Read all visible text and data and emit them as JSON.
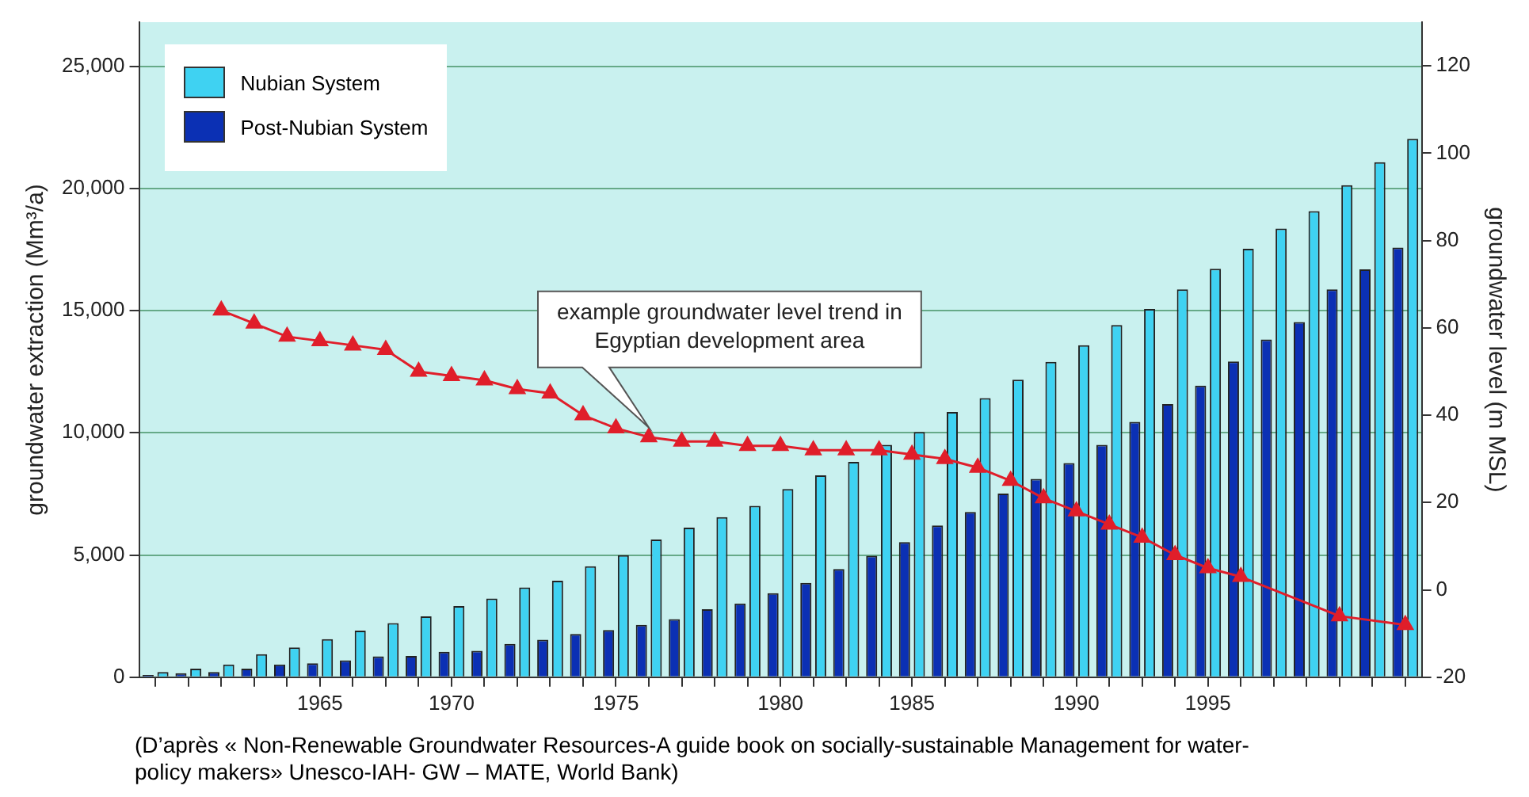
{
  "chart_data": {
    "type": "bar",
    "categories": [
      null,
      null,
      null,
      null,
      null,
      "1965",
      null,
      null,
      null,
      "1970",
      null,
      null,
      null,
      null,
      "1975",
      null,
      null,
      null,
      null,
      "1980",
      null,
      null,
      null,
      "1985",
      null,
      null,
      null,
      null,
      "1990",
      null,
      null,
      null,
      "1995",
      null,
      null,
      null,
      null,
      null,
      null
    ],
    "series": [
      {
        "name": "Nubian System",
        "color": "#3fd2f2",
        "values": [
          210,
          350,
          520,
          940,
          1220,
          1560,
          1910,
          2210,
          2490,
          2910,
          3220,
          3670,
          3950,
          4540,
          4990,
          5630,
          6120,
          6550,
          7010,
          7700,
          8260,
          8810,
          9510,
          10030,
          10850,
          11420,
          12170,
          12900,
          13580,
          14410,
          15070,
          15870,
          16710,
          17530,
          18360,
          19070,
          20130,
          21070,
          22030
        ]
      },
      {
        "name": "Post-Nubian System",
        "color": "#0b30b4",
        "values": [
          90,
          160,
          210,
          350,
          520,
          570,
          690,
          850,
          870,
          1040,
          1080,
          1360,
          1530,
          1770,
          1930,
          2140,
          2380,
          2780,
          3020,
          3440,
          3860,
          4430,
          4970,
          5530,
          6210,
          6760,
          7510,
          8110,
          8760,
          9510,
          10450,
          11180,
          11930,
          12920,
          13820,
          14530,
          15870,
          16690,
          17580
        ]
      },
      {
        "type": "line",
        "axis": "y2",
        "color": "#e01e2a",
        "values": [
          null,
          null,
          64,
          61,
          58,
          57,
          56,
          55,
          50,
          49,
          48,
          46,
          45,
          40,
          37,
          35,
          34,
          34,
          33,
          33,
          32,
          32,
          32,
          31,
          30,
          28,
          25,
          21,
          18,
          15,
          12,
          8,
          5,
          3,
          null,
          null,
          -6,
          null,
          -8
        ]
      }
    ],
    "ylabel": "groundwater extraction (Mm³/a)",
    "y2label": "groundwater level (m MSL)",
    "ylim": [
      0,
      26800
    ],
    "yticks": [
      0,
      {
        "value": 5000,
        "label": "5,000"
      },
      {
        "value": 10000,
        "label": "10,000"
      },
      {
        "value": 15000,
        "label": "15,000"
      },
      {
        "value": 20000,
        "label": "20,000"
      },
      {
        "value": 25000,
        "label": "25,000"
      }
    ],
    "y2lim": [
      -20,
      130
    ],
    "y2ticks": [
      -20,
      0,
      20,
      40,
      60,
      80,
      100,
      120
    ],
    "grid": "y",
    "legend": "top left",
    "marker": "triangle",
    "line_style": "solid",
    "annotations": [
      "example groundwater level trend in Egyptian development area",
      "(D’après « Non-Renewable Groundwater Resources-A guide book on socially-sustainable Management for water- policy makers» Unesco-IAH- GW – MATE, World Bank)"
    ]
  }
}
